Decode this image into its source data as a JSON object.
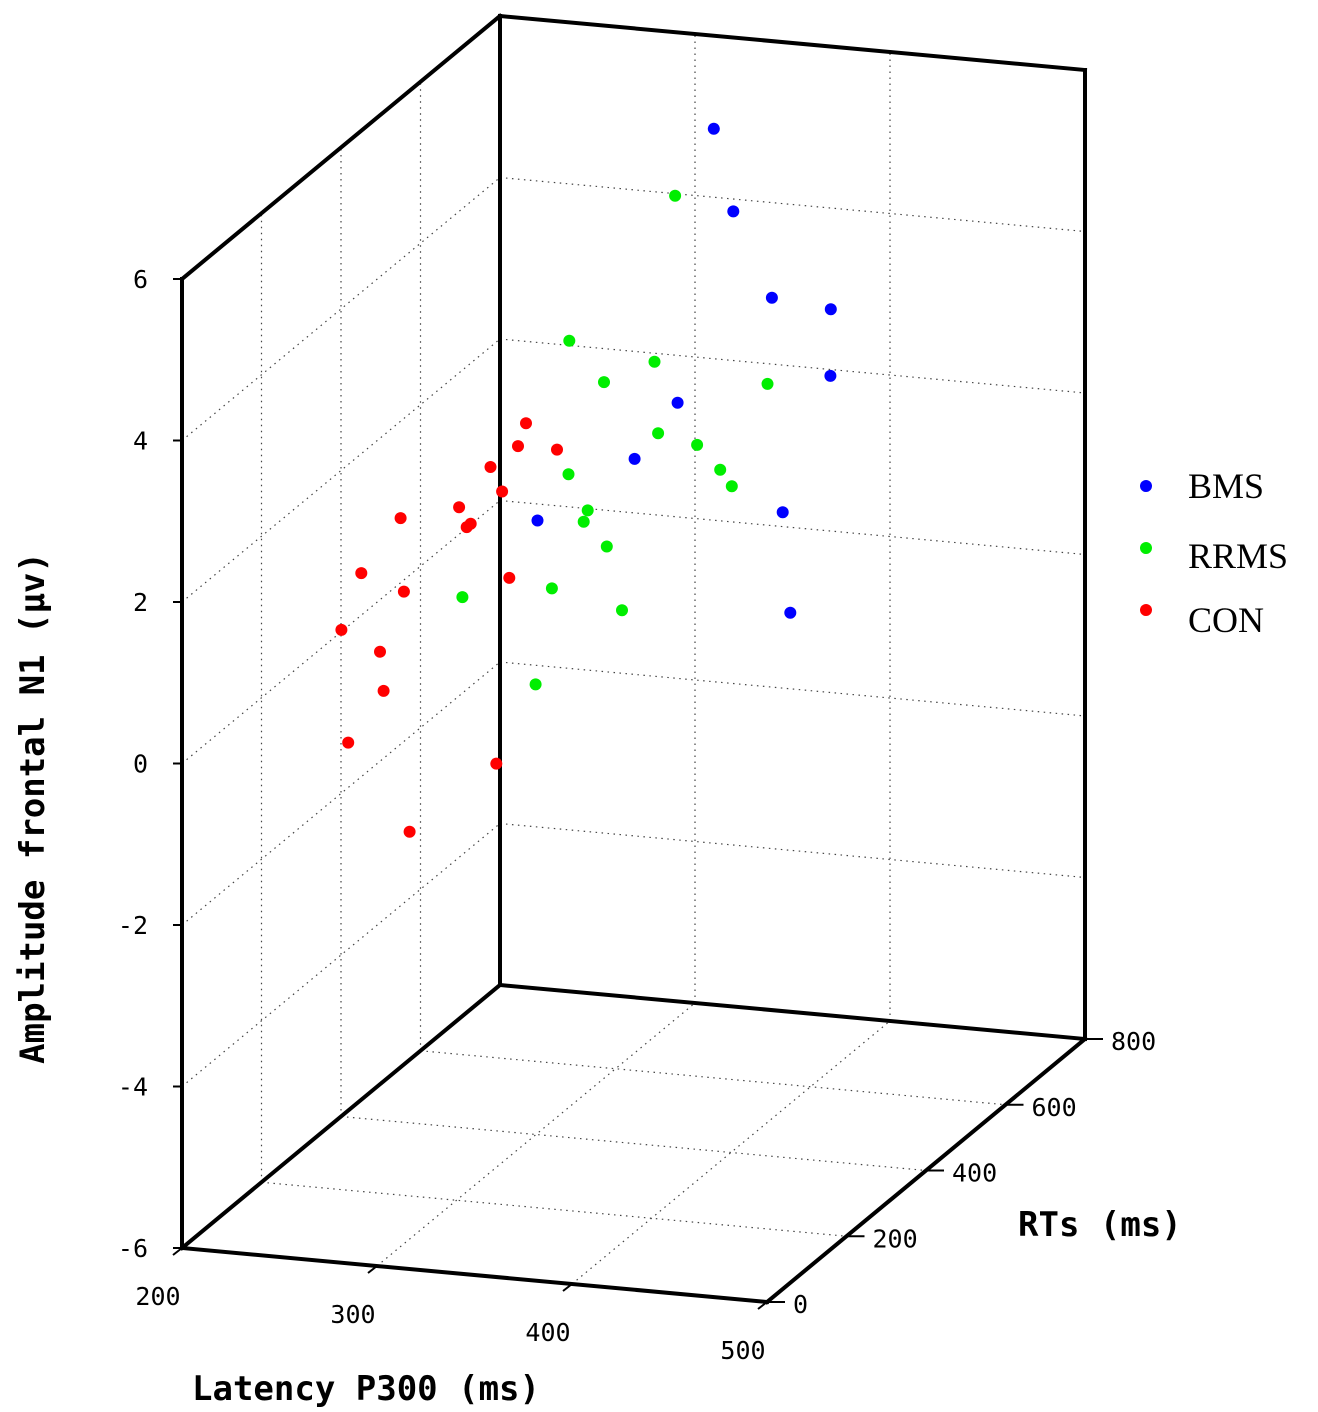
{
  "chart_data": {
    "type": "scatter",
    "projection": "3d",
    "xlabel": "Latency P300 (ms)",
    "ylabel": "RTs (ms)",
    "zlabel": "Amplitude frontal N1 (μv)",
    "xlim": [
      200,
      500
    ],
    "ylim": [
      0,
      800
    ],
    "zlim": [
      -6,
      6
    ],
    "x_ticks": [
      "200",
      "300",
      "400",
      "500"
    ],
    "y_ticks": [
      "0",
      "200",
      "400",
      "600",
      "800"
    ],
    "z_ticks": [
      "-6",
      "-4",
      "-2",
      "0",
      "2",
      "4",
      "6"
    ],
    "grid": true,
    "legend_position": "right",
    "series": [
      {
        "name": "BMS",
        "color": "#0000ff",
        "points": [
          {
            "x": 330,
            "y": 700,
            "z": 5.3
          },
          {
            "x": 340,
            "y": 700,
            "z": 4.3
          },
          {
            "x": 370,
            "y": 650,
            "z": 3.5
          },
          {
            "x": 390,
            "y": 700,
            "z": 3.2
          },
          {
            "x": 400,
            "y": 650,
            "z": 2.6
          },
          {
            "x": 340,
            "y": 560,
            "z": 2.5
          },
          {
            "x": 320,
            "y": 550,
            "z": 1.8
          },
          {
            "x": 400,
            "y": 530,
            "z": 1.4
          },
          {
            "x": 410,
            "y": 500,
            "z": 0.3
          },
          {
            "x": 260,
            "y": 600,
            "z": 0.7
          }
        ]
      },
      {
        "name": "RRMS",
        "color": "#00ee00",
        "points": [
          {
            "x": 300,
            "y": 750,
            "z": 4.2
          },
          {
            "x": 320,
            "y": 600,
            "z": 2.8
          },
          {
            "x": 380,
            "y": 590,
            "z": 2.7
          },
          {
            "x": 260,
            "y": 680,
            "z": 2.6
          },
          {
            "x": 290,
            "y": 620,
            "z": 2.4
          },
          {
            "x": 330,
            "y": 560,
            "z": 2.1
          },
          {
            "x": 350,
            "y": 560,
            "z": 2.0
          },
          {
            "x": 370,
            "y": 520,
            "z": 1.9
          },
          {
            "x": 380,
            "y": 500,
            "z": 1.8
          },
          {
            "x": 280,
            "y": 580,
            "z": 1.4
          },
          {
            "x": 300,
            "y": 530,
            "z": 1.2
          },
          {
            "x": 300,
            "y": 520,
            "z": 1.1
          },
          {
            "x": 320,
            "y": 480,
            "z": 1.0
          },
          {
            "x": 300,
            "y": 440,
            "z": 0.6
          },
          {
            "x": 340,
            "y": 420,
            "z": 0.5
          },
          {
            "x": 250,
            "y": 460,
            "z": 0.3
          },
          {
            "x": 310,
            "y": 350,
            "z": -0.2
          }
        ]
      },
      {
        "name": "CON",
        "color": "#ff0000",
        "points": [
          {
            "x": 250,
            "y": 620,
            "z": 1.8
          },
          {
            "x": 250,
            "y": 600,
            "z": 1.6
          },
          {
            "x": 270,
            "y": 600,
            "z": 1.6
          },
          {
            "x": 240,
            "y": 580,
            "z": 1.4
          },
          {
            "x": 250,
            "y": 560,
            "z": 1.2
          },
          {
            "x": 230,
            "y": 550,
            "z": 1.0
          },
          {
            "x": 240,
            "y": 530,
            "z": 0.9
          },
          {
            "x": 240,
            "y": 520,
            "z": 0.9
          },
          {
            "x": 200,
            "y": 550,
            "z": 0.8
          },
          {
            "x": 270,
            "y": 480,
            "z": 0.5
          },
          {
            "x": 220,
            "y": 460,
            "z": 0.3
          },
          {
            "x": 190,
            "y": 500,
            "z": 0.3
          },
          {
            "x": 220,
            "y": 400,
            "z": -0.2
          },
          {
            "x": 190,
            "y": 450,
            "z": -0.2
          },
          {
            "x": 230,
            "y": 360,
            "z": -0.5
          },
          {
            "x": 220,
            "y": 320,
            "z": -1.0
          },
          {
            "x": 300,
            "y": 300,
            "z": -1.0
          },
          {
            "x": 280,
            "y": 180,
            "z": -1.4
          }
        ]
      }
    ]
  }
}
